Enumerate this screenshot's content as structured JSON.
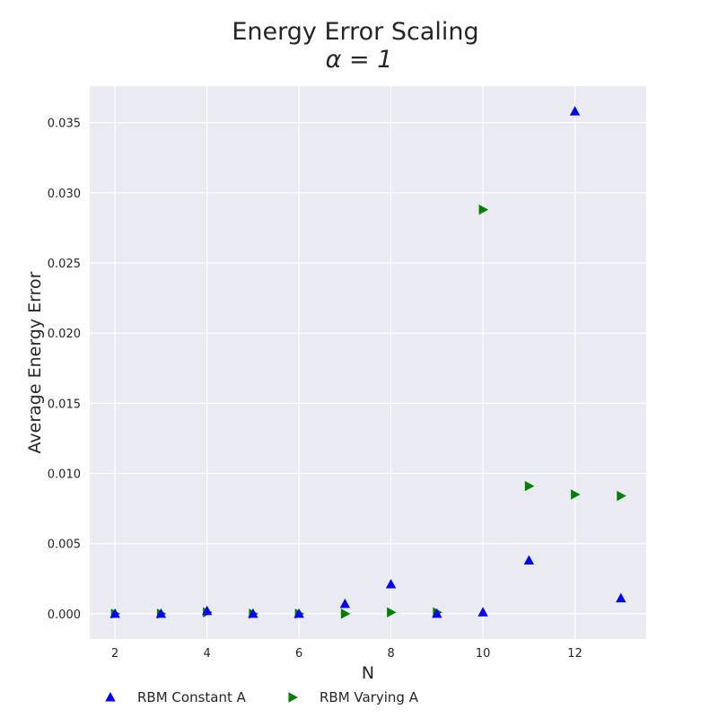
{
  "chart_data": {
    "type": "scatter",
    "title": "Energy Error Scaling",
    "subtitle": "α = 1",
    "xlabel": "N",
    "ylabel": "Average Energy Error",
    "xlim": [
      1.45,
      13.55
    ],
    "ylim": [
      -0.0018,
      0.0376
    ],
    "xticks": [
      2,
      4,
      6,
      8,
      10,
      12
    ],
    "yticks": [
      0.0,
      0.005,
      0.01,
      0.015,
      0.02,
      0.025,
      0.03,
      0.035
    ],
    "ytick_labels": [
      "0.000",
      "0.005",
      "0.010",
      "0.015",
      "0.020",
      "0.025",
      "0.030",
      "0.035"
    ],
    "grid": true,
    "legend_position": "bottom",
    "series": [
      {
        "name": "RBM Constant A",
        "marker": "triangle-up",
        "color": "#0000ff",
        "x": [
          2,
          3,
          4,
          5,
          6,
          7,
          8,
          9,
          10,
          11,
          12,
          13
        ],
        "y": [
          0.0,
          0.0,
          0.0002,
          0.0,
          0.0,
          0.0007,
          0.0021,
          0.0,
          0.0001,
          0.0038,
          0.0358,
          0.0011
        ]
      },
      {
        "name": "RBM Varying A",
        "marker": "triangle-right",
        "color": "#008000",
        "x": [
          2,
          3,
          4,
          5,
          6,
          7,
          8,
          9,
          10,
          11,
          12,
          13
        ],
        "y": [
          0.0,
          0.0,
          0.0001,
          0.0,
          0.0,
          0.0,
          0.0001,
          0.0001,
          0.0288,
          0.0091,
          0.0085,
          0.0084
        ]
      }
    ]
  }
}
